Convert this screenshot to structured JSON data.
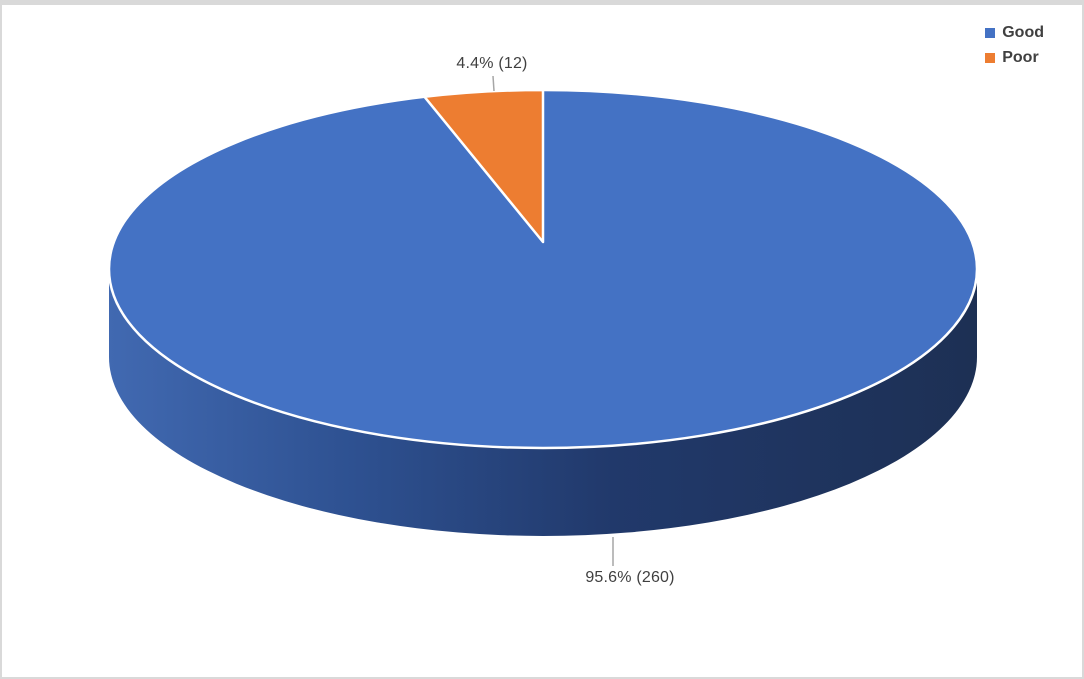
{
  "chart_data": {
    "type": "pie",
    "title": "",
    "is_3d": true,
    "legend_position": "top-right",
    "start_angle_deg": 0,
    "slices": [
      {
        "name": "Good",
        "value": 260,
        "pct": 95.6,
        "color": "#4472C4",
        "label": "95.6% (260)"
      },
      {
        "name": "Poor",
        "value": 12,
        "pct": 4.4,
        "color": "#ED7D31",
        "label": "4.4% (12)"
      }
    ],
    "side_gradient": [
      "#4169B1",
      "#2E5191",
      "#21396B",
      "#1D3054"
    ],
    "slice_separator_color": "#FFFFFF",
    "label_color": "#404040",
    "leader_line_color": "#A6A6A6",
    "frame_border_color": "#D9D9D9",
    "background_color": "#FFFFFF"
  }
}
